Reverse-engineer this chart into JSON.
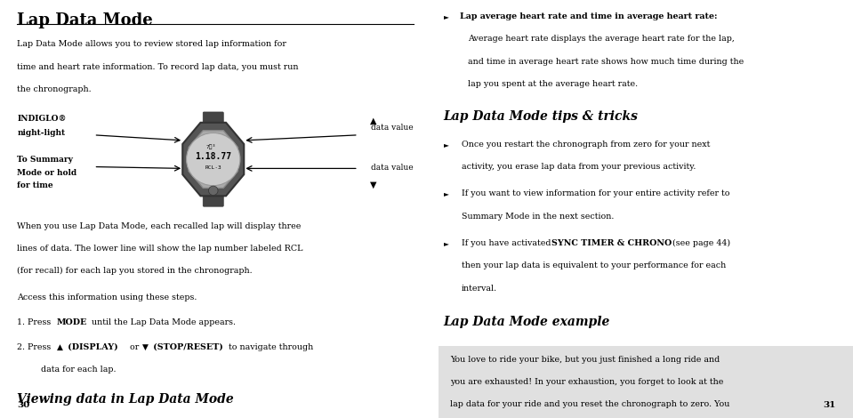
{
  "bg_color": "#ffffff",
  "left_col": {
    "title": "Lap Data Mode",
    "page_num": "30",
    "section2_title": "Viewing data in Lap Data Mode",
    "para2": "Access this information using these steps."
  },
  "right_col": {
    "tips_title": "Lap Data Mode tips & tricks",
    "example_title": "Lap Data Mode example",
    "example_box_color": "#e0e0e0",
    "page_num": "31"
  }
}
